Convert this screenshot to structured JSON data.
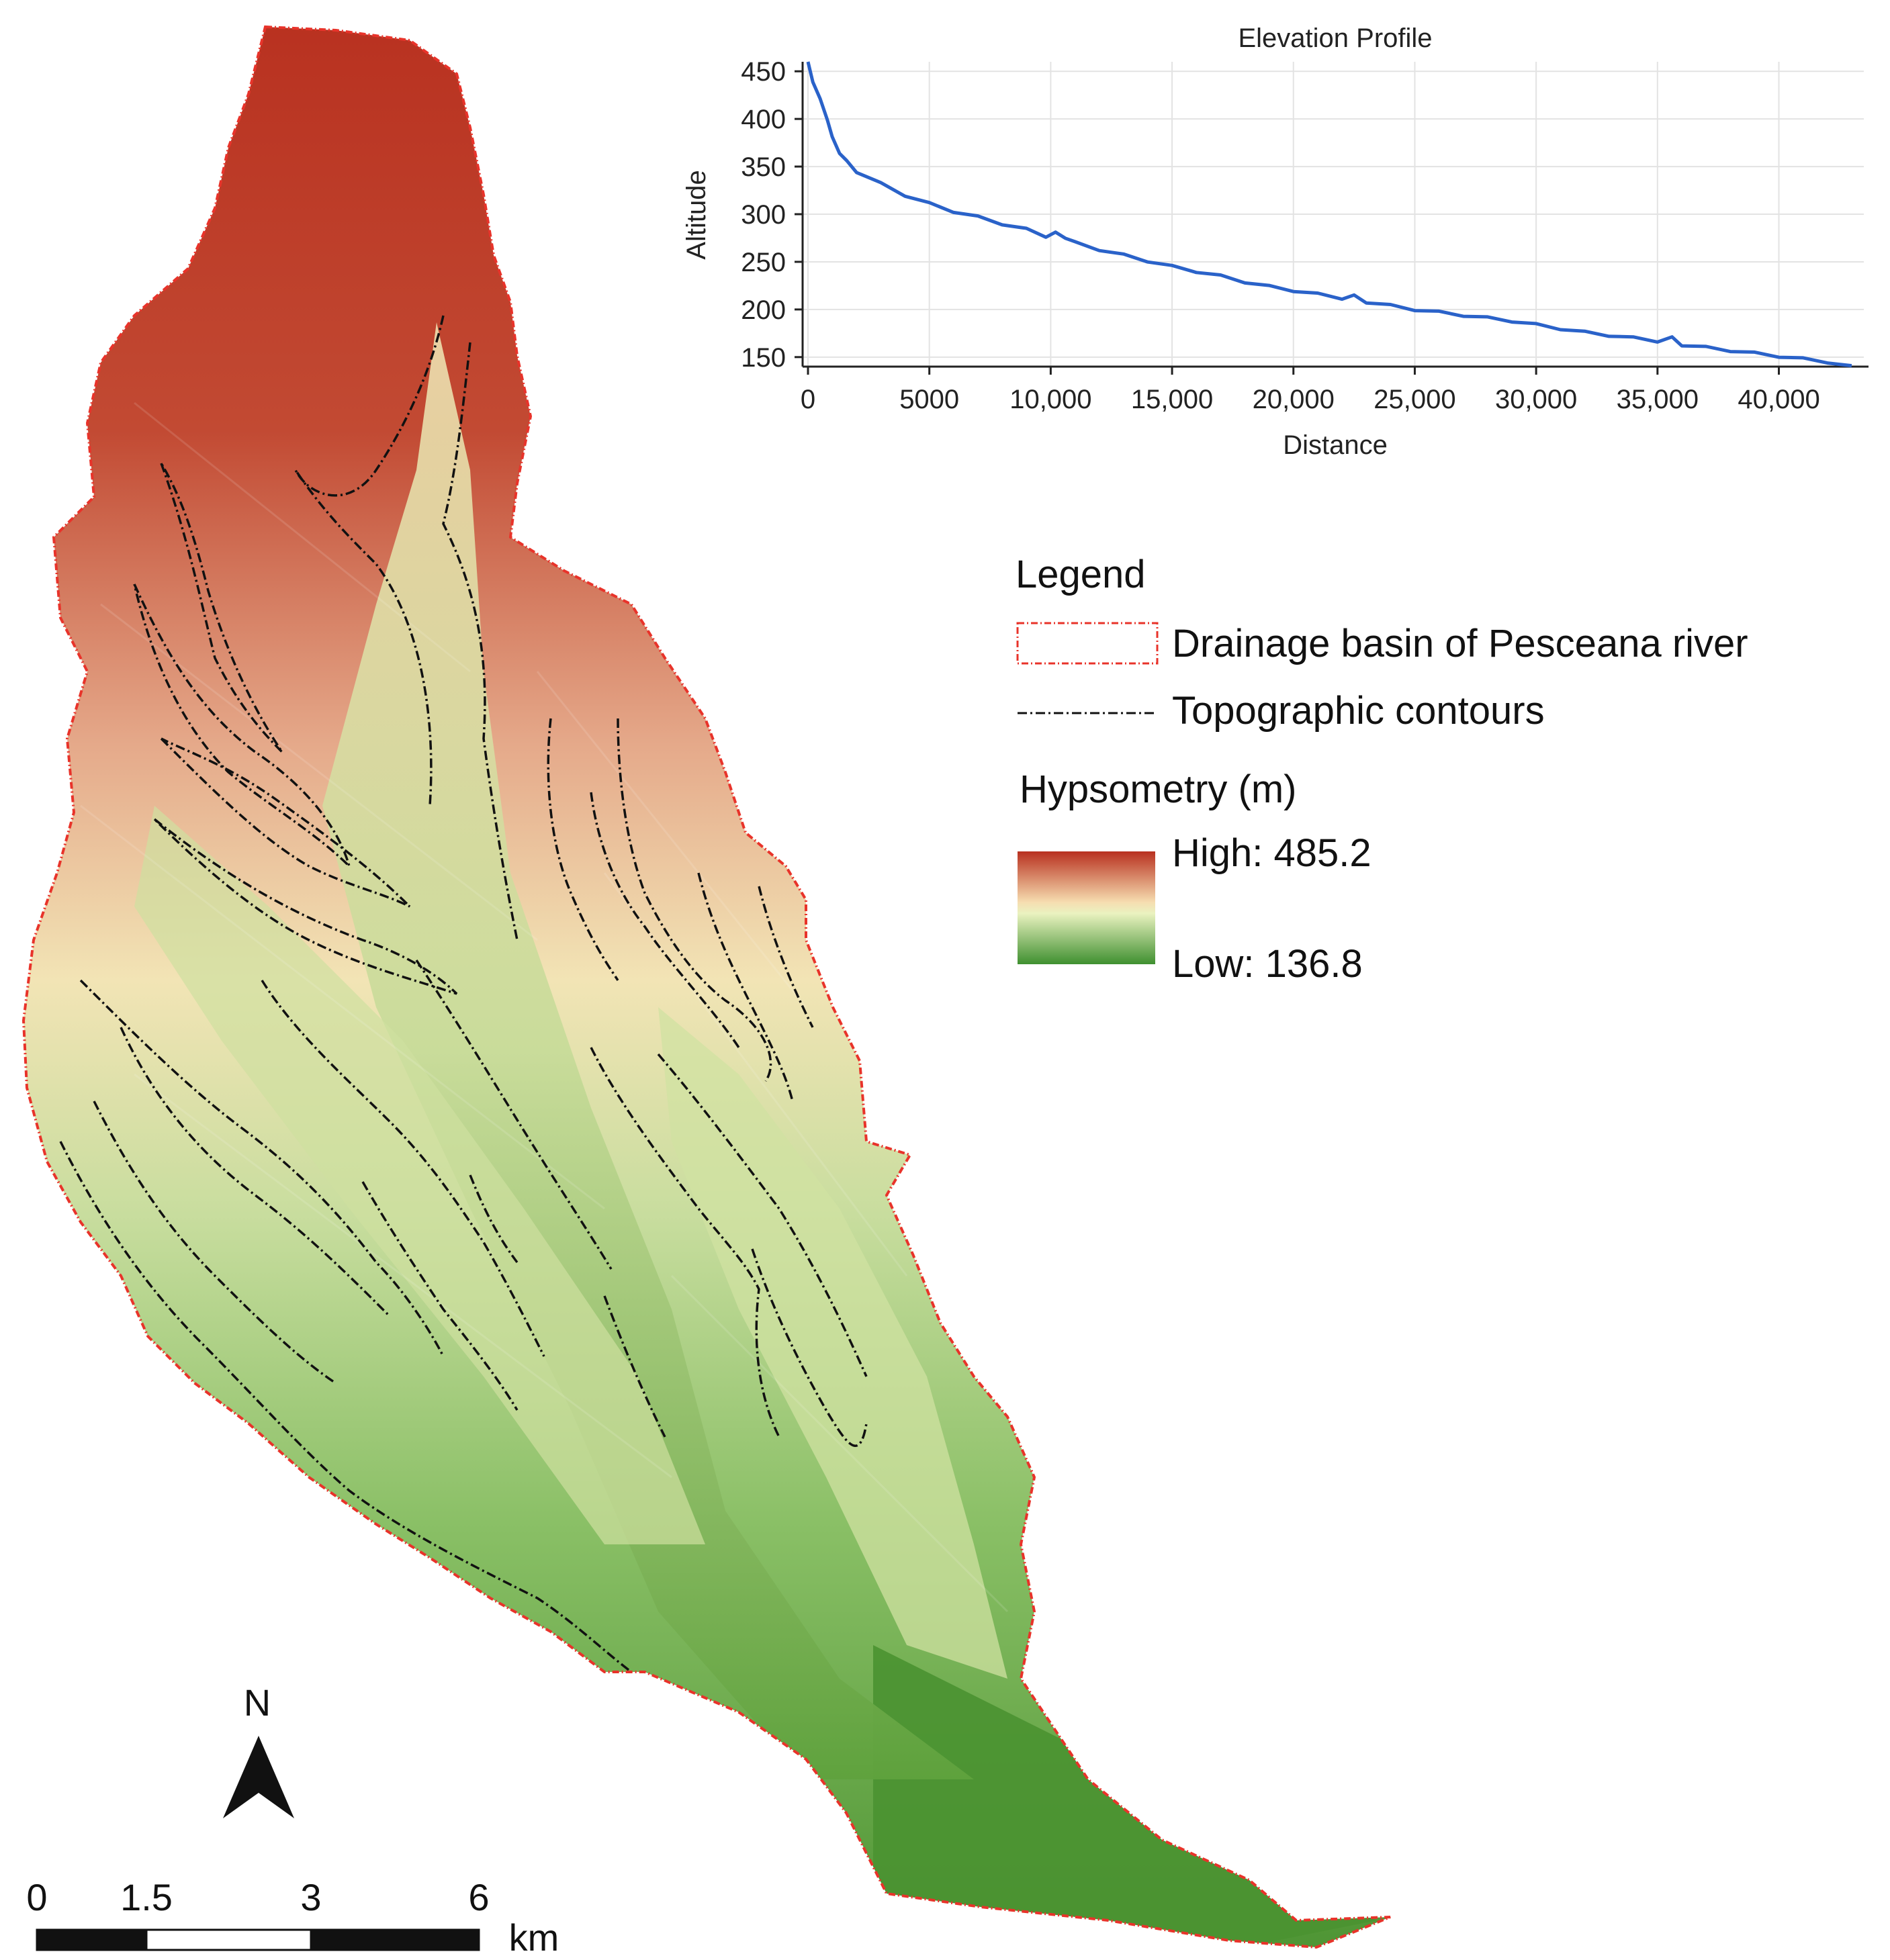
{
  "colors": {
    "basin_high": "#b83226",
    "basin_mid": "#f3e7ba",
    "basin_low": "#4f9a35",
    "basin_boundary": "#e8332a",
    "contour": "#111111",
    "profile_line": "#2a62c9",
    "grid": "#e3e3e3"
  },
  "chart_data": {
    "type": "line",
    "title": "Elevation Profile",
    "xlabel": "Distance",
    "ylabel": "Altitude",
    "xlim": [
      0,
      43500
    ],
    "ylim": [
      140,
      460
    ],
    "grid": true,
    "x_ticks": [
      0,
      5000,
      10000,
      15000,
      20000,
      25000,
      30000,
      35000,
      40000
    ],
    "x_tick_labels": [
      "0",
      "5000",
      "10,000",
      "15,000",
      "20,000",
      "25,000",
      "30,000",
      "35,000",
      "40,000"
    ],
    "y_ticks": [
      150,
      200,
      250,
      300,
      350,
      400,
      450
    ],
    "y_tick_labels": [
      "150",
      "200",
      "250",
      "300",
      "350",
      "400",
      "450"
    ],
    "series": [
      {
        "x": [
          0,
          200,
          500,
          800,
          1000,
          1300,
          1600,
          2000,
          3000,
          4000,
          5000,
          6000,
          7000,
          8000,
          9000,
          9800,
          10200,
          10600,
          11000,
          12000,
          13000,
          14000,
          15000,
          16000,
          17000,
          18000,
          19000,
          20000,
          21000,
          22000,
          22500,
          23000,
          24000,
          25000,
          26000,
          27000,
          28000,
          29000,
          30000,
          31000,
          32000,
          33000,
          34000,
          35000,
          35600,
          36000,
          37000,
          38000,
          39000,
          40000,
          41000,
          42000,
          43000
        ],
        "y": [
          460,
          440,
          420,
          400,
          380,
          365,
          355,
          345,
          332,
          320,
          311,
          303,
          297,
          290,
          284,
          277,
          280,
          276,
          270,
          263,
          257,
          251,
          245,
          240,
          235,
          229,
          224,
          220,
          216,
          212,
          214,
          208,
          204,
          200,
          197,
          194,
          191,
          188,
          184,
          180,
          176,
          173,
          170,
          167,
          170,
          163,
          160,
          157,
          154,
          151,
          148,
          145,
          141
        ]
      }
    ]
  },
  "legend": {
    "title": "Legend",
    "items": [
      {
        "label": "Drainage basin of Pesceana river"
      },
      {
        "label": "Topographic contours"
      }
    ],
    "hypsometry_title": "Hypsometry (m)",
    "high_label": "High: 485.2",
    "low_label": "Low: 136.8"
  },
  "north_arrow": {
    "label": "N"
  },
  "scale_bar": {
    "labels": [
      "0",
      "1.5",
      "3",
      "6"
    ],
    "unit": "km"
  }
}
